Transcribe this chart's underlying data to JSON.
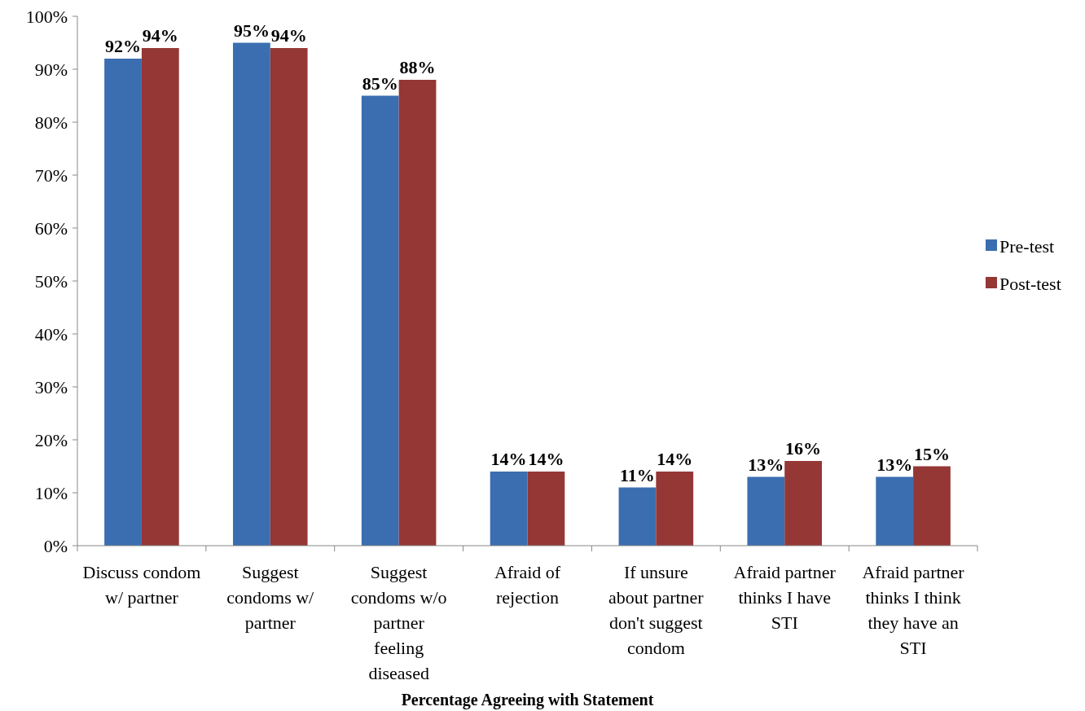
{
  "chart_data": {
    "type": "bar",
    "xlabel": "Percentage Agreeing with Statement",
    "categories": [
      "Discuss condom w/ partner",
      "Suggest condoms w/ partner",
      "Suggest condoms w/o partner feeling diseased",
      "Afraid of rejection",
      "If unsure about partner don't suggest condom",
      "Afraid partner thinks I have STI",
      "Afraid partner thinks I think they have an STI"
    ],
    "series": [
      {
        "name": "Pre-test",
        "color": "#3a6eb0",
        "values": [
          92,
          95,
          85,
          14,
          11,
          13,
          13
        ],
        "value_labels": [
          "92%",
          "95%",
          "85%",
          "14%",
          "11%",
          "13%",
          "13%"
        ]
      },
      {
        "name": "Post-test",
        "color": "#953735",
        "values": [
          94,
          94,
          88,
          14,
          14,
          16,
          15
        ],
        "value_labels": [
          "94%",
          "94%",
          "88%",
          "14%",
          "14%",
          "16%",
          "15%"
        ]
      }
    ],
    "ylim": [
      0,
      100
    ],
    "yticks": [
      {
        "value": 0,
        "label": "0%"
      },
      {
        "value": 10,
        "label": "10%"
      },
      {
        "value": 20,
        "label": "20%"
      },
      {
        "value": 30,
        "label": "30%"
      },
      {
        "value": 40,
        "label": "40%"
      },
      {
        "value": 50,
        "label": "50%"
      },
      {
        "value": 60,
        "label": "60%"
      },
      {
        "value": 70,
        "label": "70%"
      },
      {
        "value": 80,
        "label": "80%"
      },
      {
        "value": 90,
        "label": "90%"
      },
      {
        "value": 100,
        "label": "100%"
      }
    ],
    "legend": "right",
    "grid": false
  }
}
